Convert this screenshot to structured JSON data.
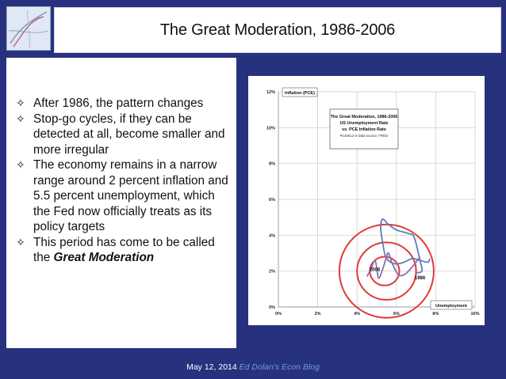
{
  "slide": {
    "title": "The Great Moderation, 1986-2006",
    "bullets": [
      {
        "text": "After 1986, the pattern changes"
      },
      {
        "text": "Stop-go cycles, if they can be detected at all, become smaller and more irregular"
      },
      {
        "text": "The economy remains in a narrow range around 2 percent inflation and 5.5 percent unemployment, which the Fed now officially treats as its policy targets"
      },
      {
        "text_before": "This period has come to be called the ",
        "emphasis": "Great Moderation"
      }
    ],
    "footer": {
      "date": "May 12, 2014",
      "link_label": "Ed Dolan's Econ Blog"
    },
    "thumbnail_icon": "map-thumbnail-icon"
  },
  "chart_data": {
    "type": "line",
    "title": "The Great Moderation, 1986-2006",
    "subtitle_lines": [
      "US Unemployment Rate",
      "vs. PCE Inflation Rate"
    ],
    "source_note": "P140512-5 Data source: FRED",
    "ylabel": "Inflation (PCE)",
    "xlabel": "Unemployment",
    "xlim": [
      0,
      10
    ],
    "ylim": [
      0,
      12
    ],
    "xticks": [
      "0%",
      "2%",
      "4%",
      "6%",
      "8%",
      "10%"
    ],
    "yticks": [
      "0%",
      "2%",
      "4%",
      "6%",
      "8%",
      "10%",
      "12%"
    ],
    "grid": true,
    "series": [
      {
        "color": "#5b7fb8",
        "points": [
          [
            7.0,
            1.9
          ],
          [
            7.3,
            2.0
          ],
          [
            7.2,
            2.6
          ],
          [
            6.9,
            3.9
          ],
          [
            6.6,
            4.1
          ],
          [
            6.0,
            4.3
          ],
          [
            5.6,
            4.6
          ],
          [
            5.3,
            4.9
          ],
          [
            5.2,
            4.4
          ],
          [
            5.3,
            3.6
          ],
          [
            5.4,
            3.0
          ],
          [
            5.5,
            2.7
          ],
          [
            5.7,
            2.5
          ],
          [
            6.0,
            2.4
          ],
          [
            6.4,
            2.5
          ],
          [
            6.8,
            2.7
          ],
          [
            7.2,
            2.6
          ],
          [
            7.6,
            2.5
          ],
          [
            7.7,
            2.7
          ]
        ]
      },
      {
        "color": "#8a6fb0",
        "points": [
          [
            4.5,
            1.7
          ],
          [
            4.7,
            2.1
          ],
          [
            4.9,
            2.6
          ],
          [
            5.0,
            2.2
          ],
          [
            5.1,
            1.6
          ],
          [
            5.3,
            2.1
          ],
          [
            5.5,
            2.8
          ],
          [
            5.6,
            3.0
          ],
          [
            5.8,
            2.4
          ],
          [
            6.1,
            1.8
          ],
          [
            6.4,
            1.8
          ],
          [
            6.7,
            2.1
          ],
          [
            7.0,
            2.5
          ],
          [
            7.2,
            2.8
          ]
        ]
      }
    ],
    "annotations": [
      {
        "text": "2006",
        "x": 4.9,
        "y": 2.0
      },
      {
        "text": "1986",
        "x": 7.2,
        "y": 1.55
      }
    ],
    "highlight_circles": [
      {
        "color": "#e03a3a",
        "cx": 5.5,
        "cy": 2.0,
        "rx": 2.4,
        "ry": 2.6
      },
      {
        "color": "#e03a3a",
        "cx": 5.5,
        "cy": 2.0,
        "rx": 1.5,
        "ry": 1.6
      },
      {
        "color": "#e03a3a",
        "cx": 5.4,
        "cy": 2.0,
        "rx": 0.75,
        "ry": 0.8
      }
    ]
  }
}
